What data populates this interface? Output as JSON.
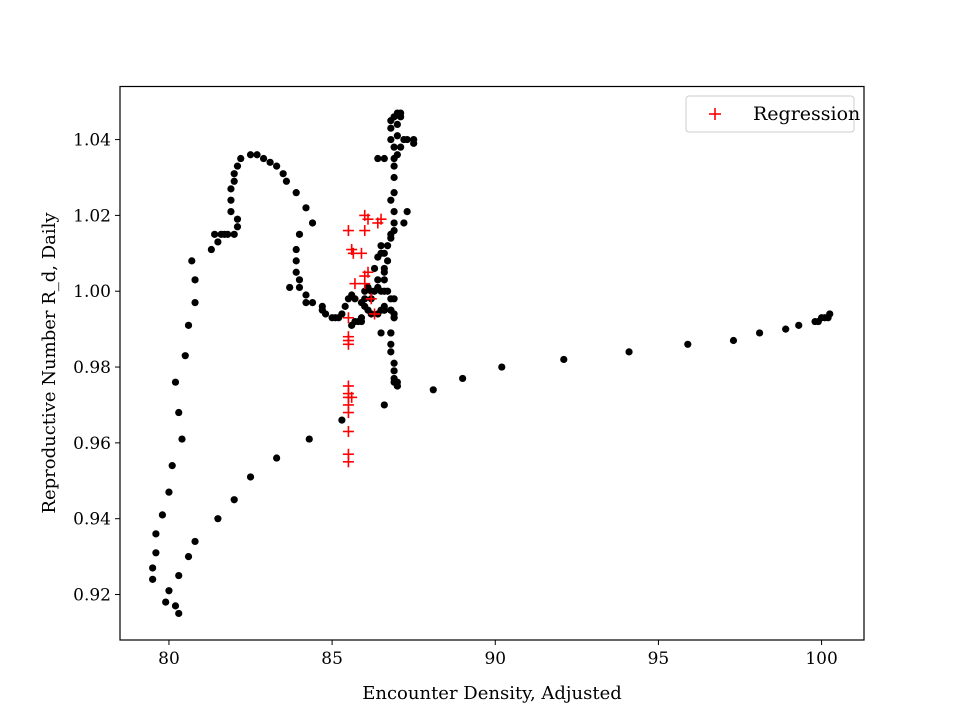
{
  "chart_data": {
    "type": "scatter",
    "title": "",
    "xlabel": "Encounter Density, Adjusted",
    "ylabel": "Reproductive Number R_d, Daily",
    "xlim": [
      78.5,
      101.3
    ],
    "ylim": [
      0.908,
      1.054
    ],
    "xticks": [
      80,
      85,
      90,
      95,
      100
    ],
    "yticks": [
      0.92,
      0.94,
      0.96,
      0.98,
      1.0,
      1.02,
      1.04
    ],
    "ytick_labels": [
      "0.92",
      "0.94",
      "0.96",
      "0.98",
      "1.00",
      "1.02",
      "1.04"
    ],
    "grid": false,
    "legend_position": "upper-right",
    "series": [
      {
        "marker": "dot",
        "color": "#000000",
        "points": [
          [
            80.0,
            0.921
          ],
          [
            79.9,
            0.918
          ],
          [
            80.2,
            0.917
          ],
          [
            80.3,
            0.915
          ],
          [
            80.3,
            0.925
          ],
          [
            80.6,
            0.93
          ],
          [
            80.8,
            0.934
          ],
          [
            81.5,
            0.94
          ],
          [
            82.0,
            0.945
          ],
          [
            82.5,
            0.951
          ],
          [
            83.3,
            0.956
          ],
          [
            84.3,
            0.961
          ],
          [
            85.3,
            0.966
          ],
          [
            86.6,
            0.97
          ],
          [
            88.1,
            0.974
          ],
          [
            89.0,
            0.977
          ],
          [
            90.2,
            0.98
          ],
          [
            92.1,
            0.982
          ],
          [
            94.1,
            0.984
          ],
          [
            95.9,
            0.986
          ],
          [
            97.3,
            0.987
          ],
          [
            98.1,
            0.989
          ],
          [
            98.9,
            0.99
          ],
          [
            99.3,
            0.991
          ],
          [
            99.8,
            0.992
          ],
          [
            99.9,
            0.992
          ],
          [
            100.0,
            0.993
          ],
          [
            100.1,
            0.993
          ],
          [
            100.2,
            0.993
          ],
          [
            100.25,
            0.994
          ],
          [
            79.5,
            0.924
          ],
          [
            79.5,
            0.927
          ],
          [
            79.6,
            0.931
          ],
          [
            79.6,
            0.936
          ],
          [
            79.8,
            0.941
          ],
          [
            80.0,
            0.947
          ],
          [
            80.1,
            0.954
          ],
          [
            80.4,
            0.961
          ],
          [
            80.3,
            0.968
          ],
          [
            80.2,
            0.976
          ],
          [
            80.5,
            0.983
          ],
          [
            80.6,
            0.991
          ],
          [
            80.8,
            0.997
          ],
          [
            80.8,
            1.003
          ],
          [
            80.7,
            1.008
          ],
          [
            81.3,
            1.011
          ],
          [
            81.5,
            1.013
          ],
          [
            81.4,
            1.015
          ],
          [
            81.6,
            1.015
          ],
          [
            81.8,
            1.015
          ],
          [
            81.7,
            1.015
          ],
          [
            82.0,
            1.015
          ],
          [
            82.1,
            1.017
          ],
          [
            82.1,
            1.019
          ],
          [
            81.9,
            1.021
          ],
          [
            81.9,
            1.024
          ],
          [
            81.9,
            1.027
          ],
          [
            82.0,
            1.029
          ],
          [
            82.0,
            1.031
          ],
          [
            82.1,
            1.033
          ],
          [
            82.2,
            1.035
          ],
          [
            82.5,
            1.036
          ],
          [
            82.7,
            1.036
          ],
          [
            82.9,
            1.035
          ],
          [
            83.1,
            1.034
          ],
          [
            83.3,
            1.033
          ],
          [
            83.5,
            1.031
          ],
          [
            83.6,
            1.029
          ],
          [
            83.9,
            1.026
          ],
          [
            84.2,
            1.022
          ],
          [
            84.4,
            1.018
          ],
          [
            84.0,
            1.015
          ],
          [
            83.9,
            1.011
          ],
          [
            83.9,
            1.008
          ],
          [
            83.9,
            1.005
          ],
          [
            84.0,
            1.003
          ],
          [
            83.7,
            1.001
          ],
          [
            84.0,
            1.001
          ],
          [
            84.2,
            0.999
          ],
          [
            84.2,
            0.997
          ],
          [
            84.4,
            0.997
          ],
          [
            84.7,
            0.996
          ],
          [
            84.7,
            0.995
          ],
          [
            84.8,
            0.994
          ],
          [
            85.0,
            0.993
          ],
          [
            85.1,
            0.993
          ],
          [
            85.2,
            0.993
          ],
          [
            85.3,
            0.994
          ],
          [
            85.4,
            0.996
          ],
          [
            85.5,
            0.998
          ],
          [
            85.6,
            0.999
          ],
          [
            85.7,
            0.998
          ],
          [
            85.9,
            0.997
          ],
          [
            86.0,
            0.996
          ],
          [
            86.1,
            0.995
          ],
          [
            86.2,
            0.994
          ],
          [
            86.4,
            0.994
          ],
          [
            86.6,
            0.995
          ],
          [
            86.8,
            0.995
          ],
          [
            86.9,
            0.994
          ],
          [
            86.9,
            0.993
          ],
          [
            85.6,
            0.991
          ],
          [
            85.7,
            0.992
          ],
          [
            85.8,
            0.992
          ],
          [
            85.9,
            0.992
          ],
          [
            85.9,
            0.993
          ],
          [
            86.0,
            0.998
          ],
          [
            86.0,
            1.0
          ],
          [
            86.1,
            1.001
          ],
          [
            86.2,
            1.0
          ],
          [
            86.3,
            1.0
          ],
          [
            86.4,
            1.001
          ],
          [
            86.5,
            1.0
          ],
          [
            86.6,
            1.0
          ],
          [
            86.6,
            1.003
          ],
          [
            86.6,
            1.006
          ],
          [
            86.7,
            1.008
          ],
          [
            86.6,
            1.01
          ],
          [
            86.7,
            1.012
          ],
          [
            86.8,
            1.014
          ],
          [
            86.9,
            1.016
          ],
          [
            86.9,
            1.018
          ],
          [
            86.9,
            1.021
          ],
          [
            86.8,
            1.024
          ],
          [
            86.9,
            1.026
          ],
          [
            86.9,
            1.03
          ],
          [
            86.9,
            1.033
          ],
          [
            86.9,
            1.035
          ],
          [
            86.9,
            1.038
          ],
          [
            87.0,
            1.041
          ],
          [
            87.0,
            1.044
          ],
          [
            87.1,
            1.046
          ],
          [
            87.1,
            1.047
          ],
          [
            87.0,
            1.047
          ],
          [
            86.9,
            1.046
          ],
          [
            86.8,
            1.045
          ],
          [
            86.8,
            1.043
          ],
          [
            86.8,
            1.04
          ],
          [
            87.1,
            1.038
          ],
          [
            87.0,
            1.036
          ],
          [
            86.6,
            1.035
          ],
          [
            86.4,
            1.035
          ],
          [
            87.2,
            1.04
          ],
          [
            87.3,
            1.04
          ],
          [
            87.5,
            1.04
          ],
          [
            87.5,
            1.039
          ],
          [
            87.2,
            1.018
          ],
          [
            87.3,
            1.021
          ],
          [
            86.8,
            1.015
          ],
          [
            86.5,
            1.01
          ],
          [
            86.6,
            1.005
          ],
          [
            86.4,
            1.003
          ],
          [
            86.5,
            0.995
          ],
          [
            86.6,
            0.995
          ],
          [
            86.8,
            0.995
          ],
          [
            86.9,
            0.993
          ],
          [
            86.5,
            0.989
          ],
          [
            86.8,
            0.989
          ],
          [
            86.8,
            0.986
          ],
          [
            86.8,
            0.984
          ],
          [
            86.9,
            0.981
          ],
          [
            86.9,
            0.979
          ],
          [
            86.9,
            0.977
          ],
          [
            86.9,
            0.976
          ],
          [
            87.0,
            0.975
          ],
          [
            87.0,
            0.975
          ],
          [
            86.8,
            0.998
          ],
          [
            86.6,
            0.996
          ],
          [
            86.9,
            0.998
          ],
          [
            86.7,
            1.0
          ],
          [
            86.2,
            0.998
          ],
          [
            86.3,
            1.006
          ],
          [
            86.4,
            1.009
          ],
          [
            86.5,
            1.012
          ],
          [
            86.8,
            0.989
          ],
          [
            87.0,
            0.976
          ]
        ]
      },
      {
        "name": "Regression",
        "marker": "plus",
        "color": "#ff0000",
        "points": [
          [
            85.5,
            1.016
          ],
          [
            85.6,
            1.011
          ],
          [
            85.65,
            1.01
          ],
          [
            85.9,
            1.01
          ],
          [
            86.0,
            1.02
          ],
          [
            86.1,
            1.019
          ],
          [
            86.0,
            1.016
          ],
          [
            86.4,
            1.018
          ],
          [
            86.5,
            1.019
          ],
          [
            86.0,
            1.004
          ],
          [
            86.1,
            1.005
          ],
          [
            86.0,
            1.002
          ],
          [
            86.2,
            0.998
          ],
          [
            85.7,
            1.002
          ],
          [
            85.5,
            0.993
          ],
          [
            85.5,
            0.988
          ],
          [
            85.5,
            0.986
          ],
          [
            85.5,
            0.987
          ],
          [
            85.5,
            0.975
          ],
          [
            85.5,
            0.973
          ],
          [
            85.5,
            0.972
          ],
          [
            85.6,
            0.972
          ],
          [
            85.5,
            0.97
          ],
          [
            85.5,
            0.968
          ],
          [
            85.5,
            0.963
          ],
          [
            85.5,
            0.957
          ],
          [
            85.5,
            0.955
          ],
          [
            86.3,
            0.994
          ]
        ]
      }
    ]
  }
}
